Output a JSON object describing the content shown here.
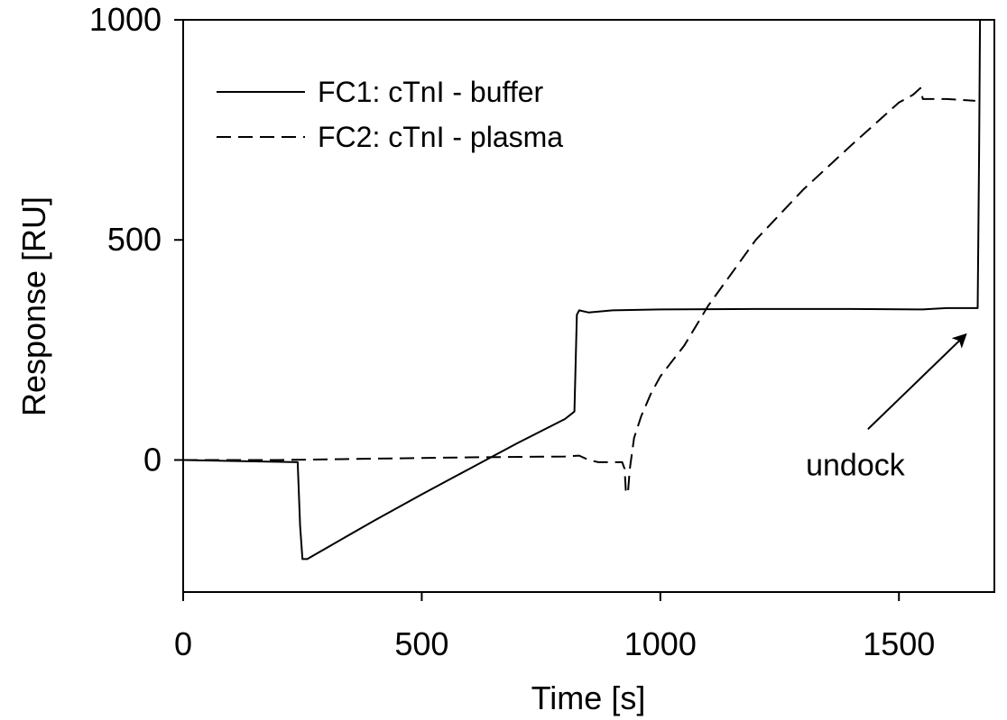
{
  "chart_data": {
    "type": "line",
    "xlabel": "Time [s]",
    "ylabel": "Response [RU]",
    "xlim": [
      0,
      1700
    ],
    "ylim": [
      -300,
      1000
    ],
    "xticks": [
      0,
      500,
      1000,
      1500
    ],
    "yticks": [
      0,
      500,
      1000
    ],
    "grid": false,
    "legend_position": "top-left",
    "series": [
      {
        "name": "FC1: cTnI - buffer",
        "style": "solid",
        "color": "#000000",
        "x": [
          0,
          240,
          245,
          250,
          260,
          300,
          400,
          500,
          600,
          700,
          800,
          820,
          825,
          830,
          850,
          900,
          1000,
          1200,
          1400,
          1550,
          1600,
          1665,
          1668,
          1670
        ],
        "y": [
          0,
          -5,
          -150,
          -225,
          -225,
          -200,
          -138,
          -78,
          -20,
          38,
          93,
          110,
          330,
          340,
          335,
          340,
          342,
          343,
          343,
          342,
          345,
          345,
          700,
          1000
        ]
      },
      {
        "name": "FC2: cTnI - plasma",
        "style": "dashed",
        "color": "#000000",
        "x": [
          0,
          200,
          400,
          600,
          800,
          830,
          850,
          870,
          890,
          920,
          925,
          928,
          932,
          936,
          945,
          960,
          980,
          1000,
          1050,
          1100,
          1200,
          1300,
          1400,
          1500,
          1530,
          1545,
          1550,
          1600,
          1660
        ],
        "y": [
          0,
          0,
          3,
          6,
          8,
          10,
          0,
          -5,
          -5,
          -5,
          -20,
          -75,
          -75,
          -20,
          50,
          100,
          150,
          190,
          260,
          350,
          500,
          615,
          715,
          812,
          830,
          845,
          820,
          820,
          816
        ]
      }
    ],
    "annotations": [
      {
        "text": "undock",
        "x": 1305,
        "y": -10,
        "arrow_from": [
          1435,
          70
        ],
        "arrow_to": [
          1640,
          285
        ]
      }
    ]
  }
}
